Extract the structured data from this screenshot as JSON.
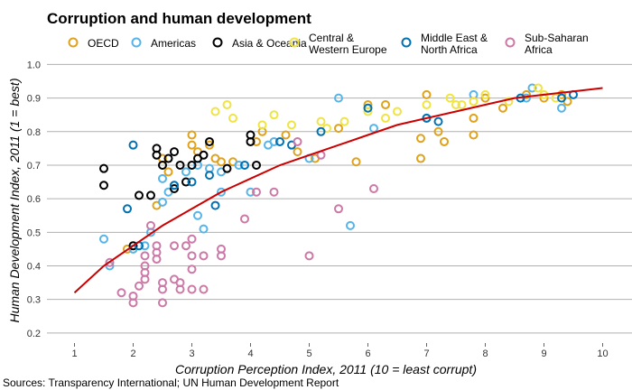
{
  "chart_data": {
    "type": "scatter",
    "title": "Corruption and human development",
    "xlabel": "Corruption Perception Index, 2011 (10 = least corrupt)",
    "ylabel": "Human Development Index, 2011 (1 = best)",
    "xlim": [
      0.5,
      10.5
    ],
    "ylim": [
      0.17,
      1.02
    ],
    "x_ticks": [
      "1",
      "2",
      "3",
      "4",
      "5",
      "6",
      "7",
      "8",
      "9",
      "10"
    ],
    "y_ticks": [
      "0.2",
      "0.3",
      "0.4",
      "0.5",
      "0.6",
      "0.7",
      "0.8",
      "0.9",
      "1.0"
    ],
    "grid": "horizontal",
    "legend_position": "top",
    "source": "Sources: Transparency International; UN Human Development Report",
    "series": [
      {
        "name": "OECD",
        "color": "#e0a11b",
        "points": [
          [
            1.9,
            0.45
          ],
          [
            2.4,
            0.58
          ],
          [
            2.5,
            0.72
          ],
          [
            2.6,
            0.68
          ],
          [
            3.0,
            0.79
          ],
          [
            3.0,
            0.76
          ],
          [
            3.1,
            0.74
          ],
          [
            3.3,
            0.76
          ],
          [
            3.4,
            0.72
          ],
          [
            3.5,
            0.71
          ],
          [
            3.7,
            0.71
          ],
          [
            4.1,
            0.77
          ],
          [
            4.2,
            0.8
          ],
          [
            4.6,
            0.79
          ],
          [
            4.8,
            0.74
          ],
          [
            5.1,
            0.72
          ],
          [
            5.5,
            0.81
          ],
          [
            5.8,
            0.71
          ],
          [
            6.0,
            0.88
          ],
          [
            6.3,
            0.88
          ],
          [
            6.9,
            0.78
          ],
          [
            6.9,
            0.72
          ],
          [
            7.0,
            0.91
          ],
          [
            7.2,
            0.8
          ],
          [
            7.3,
            0.77
          ],
          [
            7.8,
            0.79
          ],
          [
            7.8,
            0.84
          ],
          [
            8.0,
            0.9
          ],
          [
            8.3,
            0.87
          ],
          [
            8.7,
            0.91
          ],
          [
            9.0,
            0.9
          ],
          [
            9.3,
            0.91
          ],
          [
            9.4,
            0.89
          ]
        ]
      },
      {
        "name": "Americas",
        "color": "#56b4e9",
        "points": [
          [
            1.5,
            0.48
          ],
          [
            1.6,
            0.4
          ],
          [
            2.0,
            0.45
          ],
          [
            2.2,
            0.46
          ],
          [
            2.3,
            0.5
          ],
          [
            2.5,
            0.59
          ],
          [
            2.5,
            0.66
          ],
          [
            2.6,
            0.62
          ],
          [
            2.7,
            0.64
          ],
          [
            2.9,
            0.68
          ],
          [
            3.1,
            0.7
          ],
          [
            3.1,
            0.55
          ],
          [
            3.2,
            0.51
          ],
          [
            3.3,
            0.69
          ],
          [
            3.5,
            0.68
          ],
          [
            3.5,
            0.62
          ],
          [
            3.8,
            0.7
          ],
          [
            4.0,
            0.62
          ],
          [
            4.3,
            0.76
          ],
          [
            4.4,
            0.77
          ],
          [
            5.0,
            0.72
          ],
          [
            5.5,
            0.9
          ],
          [
            5.7,
            0.52
          ],
          [
            6.1,
            0.81
          ],
          [
            7.0,
            0.84
          ],
          [
            7.8,
            0.91
          ],
          [
            8.7,
            0.9
          ],
          [
            8.8,
            0.93
          ],
          [
            9.3,
            0.87
          ]
        ]
      },
      {
        "name": "Asia & Oceania",
        "color": "#000000",
        "points": [
          [
            1.5,
            0.69
          ],
          [
            1.5,
            0.64
          ],
          [
            2.0,
            0.46
          ],
          [
            2.1,
            0.61
          ],
          [
            2.3,
            0.61
          ],
          [
            2.4,
            0.73
          ],
          [
            2.4,
            0.75
          ],
          [
            2.5,
            0.7
          ],
          [
            2.6,
            0.72
          ],
          [
            2.7,
            0.63
          ],
          [
            2.7,
            0.74
          ],
          [
            2.8,
            0.7
          ],
          [
            2.9,
            0.65
          ],
          [
            3.0,
            0.7
          ],
          [
            3.1,
            0.72
          ],
          [
            3.2,
            0.73
          ],
          [
            3.3,
            0.77
          ],
          [
            3.6,
            0.69
          ],
          [
            4.0,
            0.79
          ],
          [
            4.0,
            0.77
          ],
          [
            4.1,
            0.7
          ]
        ]
      },
      {
        "name": "Central & Western Europe",
        "color": "#f0e442",
        "points": [
          [
            3.4,
            0.86
          ],
          [
            3.6,
            0.88
          ],
          [
            3.7,
            0.84
          ],
          [
            4.2,
            0.82
          ],
          [
            4.4,
            0.85
          ],
          [
            4.7,
            0.82
          ],
          [
            5.2,
            0.83
          ],
          [
            5.3,
            0.81
          ],
          [
            5.6,
            0.83
          ],
          [
            6.0,
            0.86
          ],
          [
            6.3,
            0.84
          ],
          [
            6.5,
            0.86
          ],
          [
            7.0,
            0.88
          ],
          [
            7.4,
            0.9
          ],
          [
            7.5,
            0.88
          ],
          [
            7.6,
            0.88
          ],
          [
            7.8,
            0.89
          ],
          [
            8.0,
            0.91
          ],
          [
            8.4,
            0.89
          ],
          [
            8.9,
            0.93
          ],
          [
            9.0,
            0.91
          ],
          [
            9.2,
            0.9
          ]
        ]
      },
      {
        "name": "Middle East & North Africa",
        "color": "#0072b2",
        "points": [
          [
            1.9,
            0.57
          ],
          [
            2.0,
            0.76
          ],
          [
            2.1,
            0.46
          ],
          [
            2.7,
            0.64
          ],
          [
            3.0,
            0.65
          ],
          [
            3.3,
            0.67
          ],
          [
            3.4,
            0.58
          ],
          [
            3.9,
            0.7
          ],
          [
            4.5,
            0.77
          ],
          [
            4.7,
            0.76
          ],
          [
            5.2,
            0.8
          ],
          [
            6.0,
            0.87
          ],
          [
            7.0,
            0.84
          ],
          [
            7.2,
            0.83
          ],
          [
            8.6,
            0.9
          ],
          [
            9.3,
            0.9
          ],
          [
            9.5,
            0.91
          ]
        ]
      },
      {
        "name": "Sub-Saharan Africa",
        "color": "#cc79a7",
        "points": [
          [
            1.6,
            0.41
          ],
          [
            1.8,
            0.32
          ],
          [
            2.0,
            0.29
          ],
          [
            2.0,
            0.31
          ],
          [
            2.1,
            0.34
          ],
          [
            2.2,
            0.36
          ],
          [
            2.2,
            0.38
          ],
          [
            2.2,
            0.4
          ],
          [
            2.2,
            0.43
          ],
          [
            2.3,
            0.52
          ],
          [
            2.4,
            0.46
          ],
          [
            2.4,
            0.44
          ],
          [
            2.4,
            0.42
          ],
          [
            2.5,
            0.29
          ],
          [
            2.5,
            0.33
          ],
          [
            2.5,
            0.35
          ],
          [
            2.7,
            0.36
          ],
          [
            2.7,
            0.46
          ],
          [
            2.8,
            0.33
          ],
          [
            2.8,
            0.35
          ],
          [
            2.9,
            0.46
          ],
          [
            3.0,
            0.33
          ],
          [
            3.0,
            0.39
          ],
          [
            3.0,
            0.43
          ],
          [
            3.0,
            0.48
          ],
          [
            3.2,
            0.33
          ],
          [
            3.2,
            0.43
          ],
          [
            3.5,
            0.43
          ],
          [
            3.5,
            0.45
          ],
          [
            3.9,
            0.54
          ],
          [
            4.1,
            0.62
          ],
          [
            4.4,
            0.62
          ],
          [
            4.8,
            0.77
          ],
          [
            5.0,
            0.43
          ],
          [
            5.2,
            0.73
          ],
          [
            5.5,
            0.57
          ],
          [
            6.1,
            0.63
          ]
        ]
      }
    ],
    "fit_line": {
      "color": "#cc0000",
      "points": [
        [
          1.0,
          0.32
        ],
        [
          1.5,
          0.4
        ],
        [
          2.0,
          0.46
        ],
        [
          2.5,
          0.52
        ],
        [
          3.0,
          0.57
        ],
        [
          3.5,
          0.62
        ],
        [
          4.0,
          0.66
        ],
        [
          4.5,
          0.7
        ],
        [
          5.0,
          0.73
        ],
        [
          5.5,
          0.76
        ],
        [
          6.0,
          0.79
        ],
        [
          6.5,
          0.82
        ],
        [
          7.0,
          0.84
        ],
        [
          7.5,
          0.86
        ],
        [
          8.0,
          0.88
        ],
        [
          8.5,
          0.9
        ],
        [
          9.0,
          0.91
        ],
        [
          9.5,
          0.92
        ],
        [
          10.0,
          0.93
        ]
      ]
    }
  }
}
